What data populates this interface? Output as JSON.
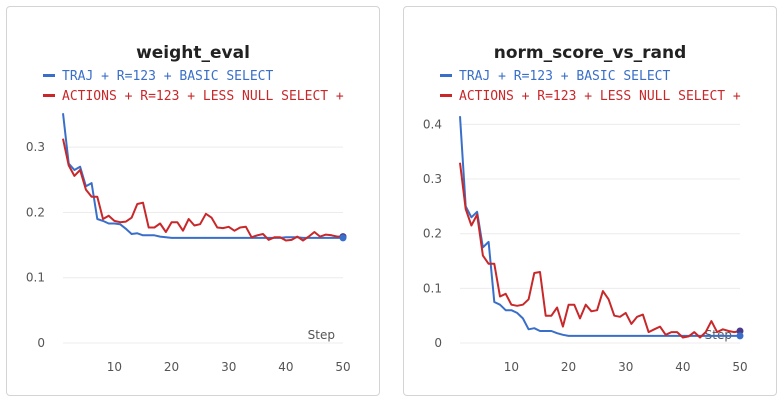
{
  "chart_data": [
    {
      "type": "line",
      "title": "weight_eval",
      "xlabel": "Step",
      "ylabel": "",
      "xlim": [
        1,
        50
      ],
      "ylim": [
        0,
        0.36
      ],
      "xticks": [
        10,
        20,
        30,
        40,
        50
      ],
      "yticks": [
        0,
        0.1,
        0.2,
        0.3
      ],
      "ytick_labels": [
        "0",
        "0.1",
        "0.2",
        "0.3"
      ],
      "grid": true,
      "legend_position": "top",
      "series": [
        {
          "name": "TRAJ + R=123 + BASIC SELECT",
          "color": "#3a6fc9",
          "x": [
            1,
            2,
            3,
            4,
            5,
            6,
            7,
            8,
            9,
            10,
            11,
            12,
            13,
            14,
            15,
            16,
            17,
            18,
            19,
            20,
            21,
            22,
            23,
            24,
            25,
            26,
            27,
            28,
            29,
            30,
            31,
            32,
            33,
            34,
            35,
            36,
            37,
            38,
            39,
            40,
            41,
            42,
            43,
            44,
            45,
            46,
            47,
            48,
            49,
            50
          ],
          "y": [
            0.352,
            0.275,
            0.265,
            0.27,
            0.24,
            0.245,
            0.19,
            0.187,
            0.183,
            0.183,
            0.182,
            0.175,
            0.167,
            0.168,
            0.165,
            0.165,
            0.165,
            0.163,
            0.162,
            0.161,
            0.161,
            0.161,
            0.161,
            0.161,
            0.161,
            0.161,
            0.161,
            0.161,
            0.161,
            0.161,
            0.161,
            0.161,
            0.161,
            0.161,
            0.161,
            0.161,
            0.161,
            0.161,
            0.161,
            0.162,
            0.162,
            0.162,
            0.161,
            0.161,
            0.161,
            0.161,
            0.161,
            0.161,
            0.161,
            0.161
          ]
        },
        {
          "name": "ACTIONS + R=123 + LESS NULL SELECT +",
          "color": "#c8282a",
          "x": [
            1,
            2,
            3,
            4,
            5,
            6,
            7,
            8,
            9,
            10,
            11,
            12,
            13,
            14,
            15,
            16,
            17,
            18,
            19,
            20,
            21,
            22,
            23,
            24,
            25,
            26,
            27,
            28,
            29,
            30,
            31,
            32,
            33,
            34,
            35,
            36,
            37,
            38,
            39,
            40,
            41,
            42,
            43,
            44,
            45,
            46,
            47,
            48,
            49,
            50
          ],
          "y": [
            0.313,
            0.272,
            0.256,
            0.265,
            0.235,
            0.224,
            0.224,
            0.19,
            0.195,
            0.187,
            0.185,
            0.186,
            0.192,
            0.213,
            0.215,
            0.177,
            0.177,
            0.183,
            0.17,
            0.185,
            0.185,
            0.172,
            0.19,
            0.18,
            0.182,
            0.198,
            0.192,
            0.177,
            0.176,
            0.178,
            0.172,
            0.177,
            0.178,
            0.162,
            0.165,
            0.167,
            0.158,
            0.162,
            0.162,
            0.157,
            0.158,
            0.163,
            0.157,
            0.163,
            0.17,
            0.163,
            0.166,
            0.165,
            0.163,
            0.163
          ]
        }
      ]
    },
    {
      "type": "line",
      "title": "norm_score_vs_rand",
      "xlabel": "Step",
      "ylabel": "",
      "xlim": [
        1,
        50
      ],
      "ylim": [
        0,
        0.43
      ],
      "xticks": [
        10,
        20,
        30,
        40,
        50
      ],
      "yticks": [
        0,
        0.1,
        0.2,
        0.3,
        0.4
      ],
      "ytick_labels": [
        "0",
        "0.1",
        "0.2",
        "0.3",
        "0.4"
      ],
      "grid": true,
      "legend_position": "top",
      "series": [
        {
          "name": "TRAJ + R=123 + BASIC SELECT",
          "color": "#3a6fc9",
          "x": [
            1,
            2,
            3,
            4,
            5,
            6,
            7,
            8,
            9,
            10,
            11,
            12,
            13,
            14,
            15,
            16,
            17,
            18,
            19,
            20,
            21,
            22,
            23,
            24,
            25,
            26,
            27,
            28,
            29,
            30,
            31,
            32,
            33,
            34,
            35,
            36,
            37,
            38,
            39,
            40,
            41,
            42,
            43,
            44,
            45,
            46,
            47,
            48,
            49,
            50
          ],
          "y": [
            0.415,
            0.25,
            0.23,
            0.24,
            0.175,
            0.185,
            0.075,
            0.07,
            0.06,
            0.06,
            0.055,
            0.045,
            0.025,
            0.027,
            0.022,
            0.022,
            0.022,
            0.018,
            0.015,
            0.013,
            0.013,
            0.013,
            0.013,
            0.013,
            0.013,
            0.013,
            0.013,
            0.013,
            0.013,
            0.013,
            0.013,
            0.013,
            0.013,
            0.013,
            0.013,
            0.013,
            0.013,
            0.013,
            0.013,
            0.013,
            0.013,
            0.013,
            0.013,
            0.013,
            0.013,
            0.013,
            0.013,
            0.013,
            0.013,
            0.013
          ]
        },
        {
          "name": "ACTIONS + R=123 + LESS NULL SELECT +",
          "color": "#c8282a",
          "x": [
            1,
            2,
            3,
            4,
            5,
            6,
            7,
            8,
            9,
            10,
            11,
            12,
            13,
            14,
            15,
            16,
            17,
            18,
            19,
            20,
            21,
            22,
            23,
            24,
            25,
            26,
            27,
            28,
            29,
            30,
            31,
            32,
            33,
            34,
            35,
            36,
            37,
            38,
            39,
            40,
            41,
            42,
            43,
            44,
            45,
            46,
            47,
            48,
            49,
            50
          ],
          "y": [
            0.33,
            0.245,
            0.215,
            0.235,
            0.16,
            0.145,
            0.145,
            0.085,
            0.09,
            0.07,
            0.068,
            0.07,
            0.08,
            0.128,
            0.13,
            0.05,
            0.05,
            0.065,
            0.03,
            0.07,
            0.07,
            0.045,
            0.07,
            0.058,
            0.06,
            0.095,
            0.08,
            0.05,
            0.048,
            0.055,
            0.035,
            0.048,
            0.052,
            0.02,
            0.025,
            0.03,
            0.015,
            0.02,
            0.02,
            0.01,
            0.012,
            0.02,
            0.01,
            0.02,
            0.04,
            0.02,
            0.025,
            0.022,
            0.02,
            0.022
          ]
        }
      ]
    }
  ]
}
